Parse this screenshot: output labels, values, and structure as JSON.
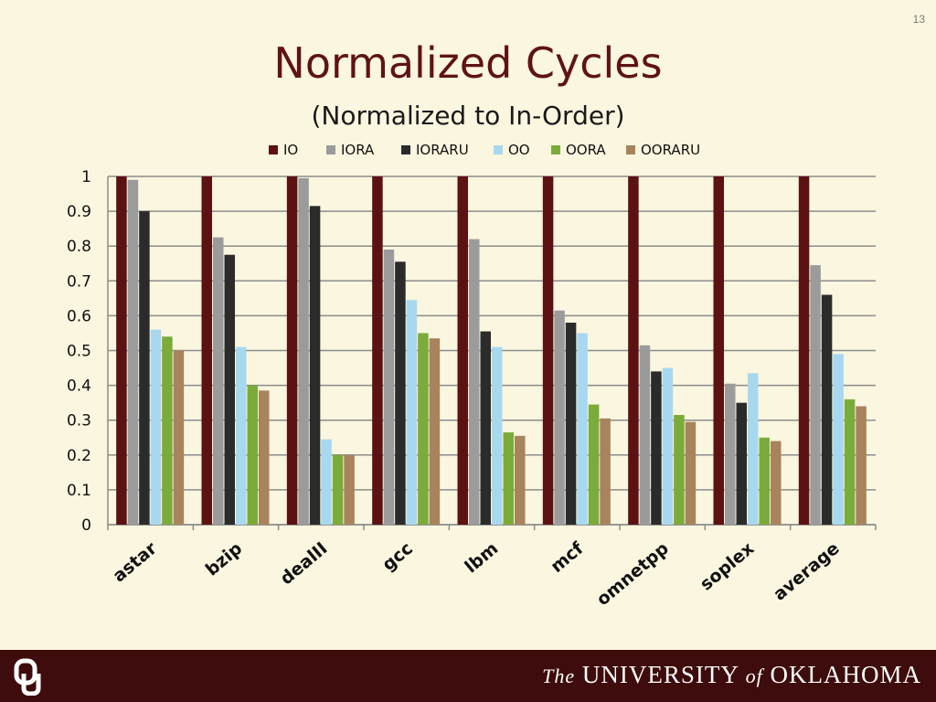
{
  "slide": {
    "number": "13",
    "title": "Normalized Cycles",
    "subtitle": "(Normalized to In-Order)"
  },
  "footer": {
    "the": "The",
    "university": "UNIVERSITY",
    "of": "of",
    "state": "OKLAHOMA",
    "logo_icon": "ou-interlocking-logo-icon"
  },
  "chart_data": {
    "type": "bar",
    "title": "",
    "xlabel": "",
    "ylabel": "",
    "ylim": [
      0,
      1
    ],
    "yticks": [
      "0",
      "0.1",
      "0.2",
      "0.3",
      "0.4",
      "0.5",
      "0.6",
      "0.7",
      "0.8",
      "0.9",
      "1"
    ],
    "grid": true,
    "legend_position": "top",
    "categories": [
      "astar",
      "bzip",
      "dealII",
      "gcc",
      "lbm",
      "mcf",
      "omnetpp",
      "soplex",
      "average"
    ],
    "series": [
      {
        "name": "IO",
        "color": "#5c1212",
        "values": [
          1,
          1,
          1,
          1,
          1,
          1,
          1,
          1,
          1
        ]
      },
      {
        "name": "IORA",
        "color": "#9b9b9b",
        "values": [
          0.99,
          0.825,
          0.995,
          0.79,
          0.82,
          0.615,
          0.515,
          0.405,
          0.745
        ]
      },
      {
        "name": "IORARU",
        "color": "#2b2b2b",
        "values": [
          0.9,
          0.775,
          0.915,
          0.755,
          0.555,
          0.58,
          0.44,
          0.35,
          0.66
        ]
      },
      {
        "name": "OO",
        "color": "#a8d8f0",
        "values": [
          0.56,
          0.51,
          0.245,
          0.645,
          0.51,
          0.55,
          0.45,
          0.435,
          0.49
        ]
      },
      {
        "name": "OORA",
        "color": "#7bab3a",
        "values": [
          0.54,
          0.4,
          0.2,
          0.55,
          0.265,
          0.345,
          0.315,
          0.25,
          0.36
        ]
      },
      {
        "name": "OORARU",
        "color": "#a8835c",
        "values": [
          0.5,
          0.385,
          0.2,
          0.535,
          0.255,
          0.305,
          0.295,
          0.24,
          0.34
        ]
      }
    ]
  }
}
